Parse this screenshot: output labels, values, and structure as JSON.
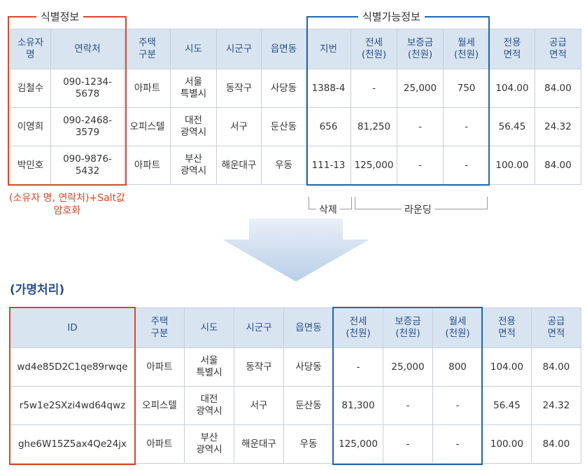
{
  "top": {
    "group_labels": {
      "identifying": "식별정보",
      "quasi_identifying": "식별가능정보"
    },
    "headers": [
      "소유자\n명",
      "연락처",
      "주택\n구분",
      "시도",
      "시군구",
      "읍면동",
      "지번",
      "전세\n(천원)",
      "보증금\n(천원)",
      "월세\n(천원)",
      "전용\n면적",
      "공급\n면적"
    ],
    "rows": [
      [
        "김철수",
        "090-1234-5678",
        "아파트",
        "서울\n특별시",
        "동작구",
        "사당동",
        "1388-4",
        "-",
        "25,000",
        "750",
        "104.00",
        "84.00"
      ],
      [
        "이영희",
        "090-2468-3579",
        "오피스텔",
        "대전\n광역시",
        "서구",
        "둔산동",
        "656",
        "81,250",
        "-",
        "-",
        "56.45",
        "24.32"
      ],
      [
        "박민호",
        "090-9876-5432",
        "아파트",
        "부산\n광역시",
        "해운대구",
        "우동",
        "111-13",
        "125,000",
        "-",
        "-",
        "100.00",
        "84.00"
      ]
    ],
    "note": "(소유자 명, 연락처)+Salt값\n암호화",
    "bracket_labels": {
      "delete": "삭제",
      "rounding": "라운딩"
    }
  },
  "section_title": "(가명처리)",
  "bottom": {
    "headers": [
      "ID",
      "주택\n구분",
      "시도",
      "시군구",
      "읍면동",
      "전세\n(천원)",
      "보증금\n(천원)",
      "월세\n(천원)",
      "전용\n면적",
      "공급\n면적"
    ],
    "rows": [
      [
        "wd4e85D2C1qe89rwqe",
        "아파트",
        "서울\n특별시",
        "동작구",
        "사당동",
        "-",
        "25,000",
        "800",
        "104.00",
        "84.00"
      ],
      [
        "r5w1e2SXzi4wd64qwz",
        "오피스텔",
        "대전\n광역시",
        "서구",
        "둔산동",
        "81,300",
        "-",
        "-",
        "56.45",
        "24.32"
      ],
      [
        "ghe6W15Z5ax4Qe24jx",
        "아파트",
        "부산\n광역시",
        "해운대구",
        "우동",
        "125,000",
        "-",
        "-",
        "100.00",
        "84.00"
      ]
    ]
  },
  "colors": {
    "header_bg": "#d9e4f1",
    "header_text": "#2a4f8c",
    "identifying_box": "#d9472b",
    "quasi_identifying_box": "#1d67b3",
    "arrow_gradient_top": "#e9f0f8",
    "arrow_gradient_bottom": "#b9cfe7"
  }
}
